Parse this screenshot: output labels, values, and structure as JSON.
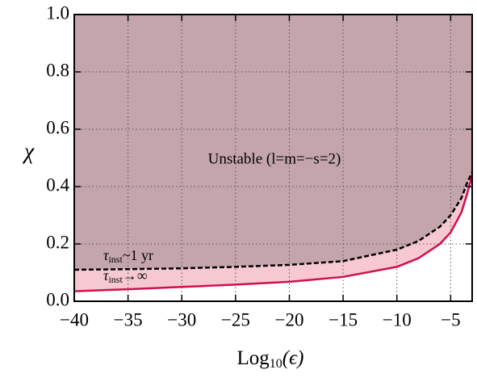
{
  "chart_data": {
    "type": "line",
    "ylabel": "χ",
    "xlabel": {
      "main": "Log",
      "subscript": "10",
      "suffix": "(ϵ)"
    },
    "x": [
      -40,
      -35,
      -30,
      -25,
      -20,
      -15,
      -10,
      -8,
      -6,
      -5,
      -4,
      -3.5,
      -3
    ],
    "series": [
      {
        "label": {
          "symbol": "τ",
          "subscript": "inst",
          "suffix": "~1 yr"
        },
        "color": "#000000",
        "dashed": true,
        "fill_above": "#c4a5ac",
        "values": [
          0.11,
          0.112,
          0.115,
          0.12,
          0.127,
          0.14,
          0.18,
          0.21,
          0.26,
          0.3,
          0.36,
          0.41,
          0.45
        ]
      },
      {
        "label": {
          "symbol": "τ",
          "subscript": "inst",
          "suffix": "→∞"
        },
        "color": "#d0104c",
        "dashed": false,
        "fill_above": "#f6c8d2",
        "values": [
          0.035,
          0.042,
          0.05,
          0.058,
          0.068,
          0.085,
          0.12,
          0.15,
          0.2,
          0.24,
          0.31,
          0.37,
          0.44
        ]
      }
    ],
    "annotation": "Unstable (l=m=−s=2)",
    "xlim": [
      -40,
      -3
    ],
    "ylim": [
      0,
      1
    ],
    "xticks": [
      {
        "value": -40,
        "label": "−40"
      },
      {
        "value": -35,
        "label": "−35"
      },
      {
        "value": -30,
        "label": "−30"
      },
      {
        "value": -25,
        "label": "−25"
      },
      {
        "value": -20,
        "label": "−20"
      },
      {
        "value": -15,
        "label": "−15"
      },
      {
        "value": -10,
        "label": "−10"
      },
      {
        "value": -5,
        "label": "−5"
      }
    ],
    "yticks": [
      {
        "value": 0,
        "label": "0.0"
      },
      0.2,
      0.4,
      0.6,
      0.8,
      {
        "value": 1,
        "label": "1.0"
      }
    ],
    "grid": true
  }
}
